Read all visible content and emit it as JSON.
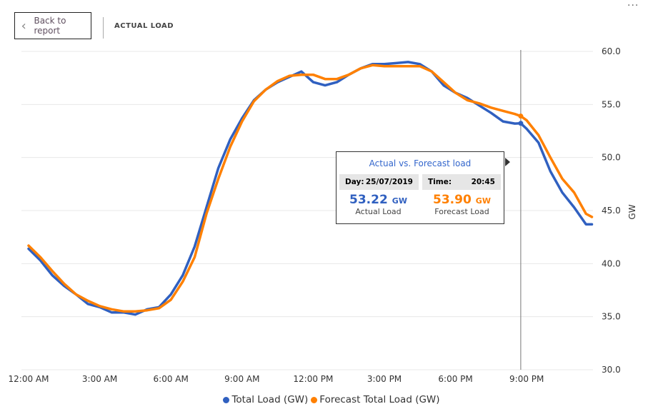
{
  "header": {
    "back_label": "Back to report",
    "title": "ACTUAL LOAD",
    "more_label": "···"
  },
  "tooltip": {
    "title": "Actual vs. Forecast load",
    "day_label": "Day:",
    "day_value": "25/07/2019",
    "time_label": "Time:",
    "time_value": "20:45",
    "actual_value": "53.22",
    "actual_unit": "GW",
    "actual_caption": "Actual Load",
    "forecast_value": "53.90",
    "forecast_unit": "GW",
    "forecast_caption": "Forecast Load"
  },
  "chart_data": {
    "type": "line",
    "ylabel": "GW",
    "ylim": [
      30,
      60
    ],
    "yticks": [
      "30.0",
      "35.0",
      "40.0",
      "45.0",
      "50.0",
      "55.0",
      "60.0"
    ],
    "xticks": [
      "12:00 AM",
      "3:00 AM",
      "6:00 AM",
      "9:00 AM",
      "12:00 PM",
      "3:00 PM",
      "6:00 PM",
      "9:00 PM"
    ],
    "xlim_hours": [
      0,
      24
    ],
    "grid": true,
    "legend": "bottom",
    "crosshair_hour": 20.75,
    "x_hours": [
      0,
      0.5,
      1,
      1.5,
      2,
      2.5,
      3,
      3.5,
      4,
      4.5,
      5,
      5.5,
      6,
      6.5,
      7,
      7.5,
      8,
      8.5,
      9,
      9.5,
      10,
      10.5,
      11,
      11.5,
      12,
      12.5,
      13,
      13.5,
      14,
      14.5,
      15,
      15.5,
      16,
      16.5,
      17,
      17.5,
      18,
      18.5,
      19,
      19.5,
      20,
      20.5,
      20.75,
      21,
      21.5,
      22,
      22.5,
      23,
      23.5,
      23.75
    ],
    "series": [
      {
        "name": "Total Load (GW)",
        "color": "#3060c0",
        "values": [
          41.4,
          40.3,
          38.9,
          37.9,
          37.1,
          36.2,
          35.9,
          35.4,
          35.4,
          35.2,
          35.7,
          35.9,
          37.1,
          38.9,
          41.6,
          45.3,
          49.0,
          51.7,
          53.7,
          55.4,
          56.4,
          57.1,
          57.6,
          58.1,
          57.1,
          56.8,
          57.1,
          57.8,
          58.4,
          58.8,
          58.8,
          58.9,
          59.0,
          58.8,
          58.1,
          56.8,
          56.1,
          55.6,
          54.9,
          54.2,
          53.4,
          53.2,
          53.22,
          52.7,
          51.4,
          48.7,
          46.7,
          45.3,
          43.7,
          43.7
        ]
      },
      {
        "name": "Forecast Total Load (GW)",
        "color": "#ff8000",
        "values": [
          41.7,
          40.6,
          39.3,
          38.1,
          37.1,
          36.5,
          36.0,
          35.7,
          35.5,
          35.5,
          35.6,
          35.8,
          36.6,
          38.3,
          40.6,
          44.7,
          48.0,
          51.0,
          53.4,
          55.3,
          56.4,
          57.2,
          57.7,
          57.8,
          57.8,
          57.4,
          57.4,
          57.8,
          58.4,
          58.7,
          58.6,
          58.6,
          58.6,
          58.6,
          58.1,
          57.1,
          56.1,
          55.4,
          55.1,
          54.7,
          54.4,
          54.1,
          53.9,
          53.5,
          52.1,
          50.0,
          48.0,
          46.7,
          44.7,
          44.4
        ]
      }
    ]
  }
}
